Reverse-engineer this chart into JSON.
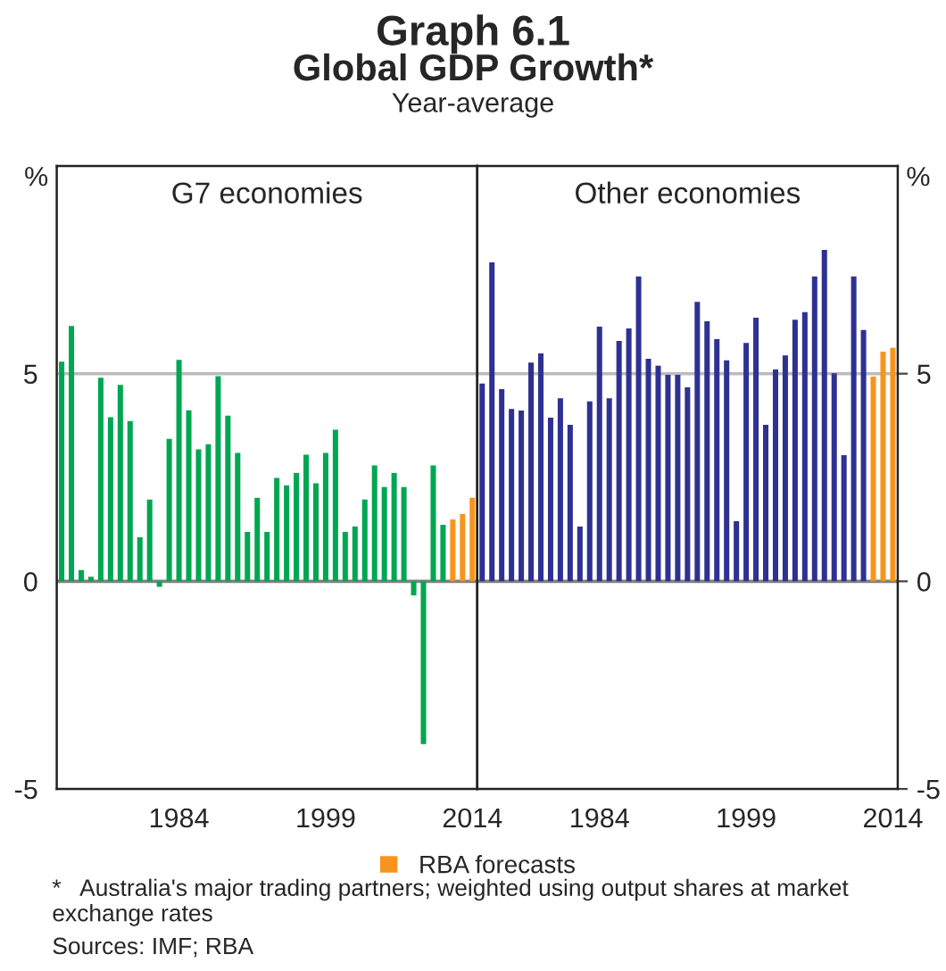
{
  "chart_data": [
    {
      "type": "bar",
      "title": "G7 economies",
      "ylabel": "%",
      "annotations": [
        "Graph 6.1",
        "Global GDP Growth*",
        "Year-average"
      ],
      "x": [
        1972,
        1973,
        1974,
        1975,
        1976,
        1977,
        1978,
        1979,
        1980,
        1981,
        1982,
        1983,
        1984,
        1985,
        1986,
        1987,
        1988,
        1989,
        1990,
        1991,
        1992,
        1993,
        1994,
        1995,
        1996,
        1997,
        1998,
        1999,
        2000,
        2001,
        2002,
        2003,
        2004,
        2005,
        2006,
        2007,
        2008,
        2009,
        2010,
        2011,
        2012,
        2013,
        2014
      ],
      "series": [
        {
          "color": "#00a651",
          "values": [
            5.29,
            6.15,
            0.27,
            0.11,
            4.9,
            3.95,
            4.73,
            3.86,
            1.06,
            1.97,
            -0.13,
            3.43,
            5.33,
            4.12,
            3.18,
            3.3,
            4.94,
            3.99,
            3.09,
            1.19,
            2.01,
            1.19,
            2.49,
            2.31,
            2.61,
            3.05,
            2.36,
            3.09,
            3.65,
            1.19,
            1.32,
            1.97,
            2.79,
            2.27,
            2.61,
            2.27,
            -0.34,
            -3.92,
            2.79,
            1.36,
            null,
            null,
            null
          ]
        },
        {
          "color": "#f7941d",
          "values": [
            null,
            null,
            null,
            null,
            null,
            null,
            null,
            null,
            null,
            null,
            null,
            null,
            null,
            null,
            null,
            null,
            null,
            null,
            null,
            null,
            null,
            null,
            null,
            null,
            null,
            null,
            null,
            null,
            null,
            null,
            null,
            null,
            null,
            null,
            null,
            null,
            null,
            null,
            null,
            null,
            1.49,
            1.62,
            2.01
          ]
        }
      ],
      "xlim": [
        1971.5,
        2014.5
      ],
      "xticks": [
        1984,
        1999,
        2014
      ],
      "ylim": [
        -5,
        10
      ],
      "yticks": [
        -5,
        0,
        5
      ],
      "ref_lines": [
        {
          "axis": "y",
          "value": 0,
          "color": "#808080"
        },
        {
          "axis": "y",
          "value": 5,
          "color": "#bbbbbb"
        }
      ]
    },
    {
      "type": "bar",
      "title": "Other economies",
      "ylabel": "%",
      "annotations": [
        "*   Australia's major trading partners; weighted using output shares at market exchange rates",
        "Sources: IMF; RBA"
      ],
      "x": [
        1972,
        1973,
        1974,
        1975,
        1976,
        1977,
        1978,
        1979,
        1980,
        1981,
        1982,
        1983,
        1984,
        1985,
        1986,
        1987,
        1988,
        1989,
        1990,
        1991,
        1992,
        1993,
        1994,
        1995,
        1996,
        1997,
        1998,
        1999,
        2000,
        2001,
        2002,
        2003,
        2004,
        2005,
        2006,
        2007,
        2008,
        2009,
        2010,
        2011,
        2012,
        2013,
        2014
      ],
      "series": [
        {
          "color": "#2e3192",
          "values": [
            4.76,
            7.68,
            4.63,
            4.15,
            4.11,
            5.27,
            5.49,
            3.94,
            4.41,
            3.77,
            1.32,
            4.33,
            6.13,
            4.41,
            5.79,
            6.09,
            7.34,
            5.36,
            5.19,
            4.97,
            4.97,
            4.67,
            6.73,
            6.26,
            5.83,
            5.32,
            1.45,
            5.74,
            6.35,
            3.77,
            5.1,
            5.44,
            6.3,
            6.48,
            7.34,
            7.98,
            5.01,
            3.04,
            7.34,
            6.05,
            null,
            null,
            null
          ]
        },
        {
          "name": "RBA forecasts",
          "color": "#f7941d",
          "values": [
            null,
            null,
            null,
            null,
            null,
            null,
            null,
            null,
            null,
            null,
            null,
            null,
            null,
            null,
            null,
            null,
            null,
            null,
            null,
            null,
            null,
            null,
            null,
            null,
            null,
            null,
            null,
            null,
            null,
            null,
            null,
            null,
            null,
            null,
            null,
            null,
            null,
            null,
            null,
            null,
            4.93,
            5.53,
            5.62
          ]
        }
      ],
      "xlim": [
        1971.5,
        2014.5
      ],
      "xticks": [
        1984,
        1999,
        2014
      ],
      "ylim": [
        -5,
        10
      ],
      "yticks": [
        -5,
        0,
        5
      ],
      "legend": "bottom",
      "ref_lines": [
        {
          "axis": "y",
          "value": 0,
          "color": "#808080"
        },
        {
          "axis": "y",
          "value": 5,
          "color": "#bbbbbb"
        }
      ]
    }
  ]
}
